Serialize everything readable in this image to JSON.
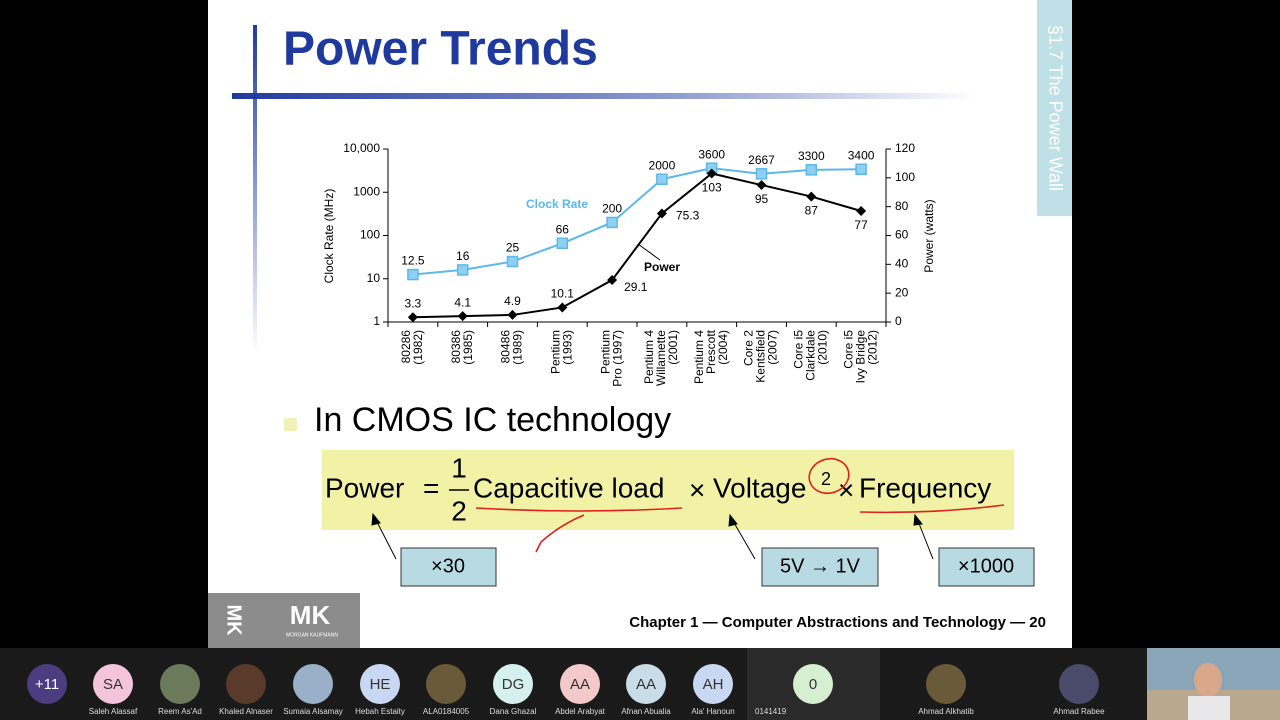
{
  "slide": {
    "title": "Power Trends",
    "section_tab": "§1.7 The Power Wall",
    "bullet": "In CMOS IC technology",
    "formula": {
      "lhs": "Power",
      "equals": "=",
      "numerator": "1",
      "denominator": "2",
      "terms": [
        "Capacitive load",
        "Voltage",
        "Frequency"
      ],
      "times": "×",
      "exponent": "2"
    },
    "callouts": [
      "×30",
      "5V → 1V",
      "×1000"
    ],
    "footer": "Chapter 1 — Computer Abstractions and Technology — 20",
    "logo": "MK",
    "logo_sub": "MORGAN KAUFMANN"
  },
  "chart_data": {
    "type": "line",
    "categories": [
      "80286\n(1982)",
      "80386\n(1985)",
      "80486\n(1989)",
      "Pentium\n(1993)",
      "Pentium\nPro (1997)",
      "Pentium 4\nWillamette\n(2001)",
      "Pentium 4\nPrescott\n(2004)",
      "Core 2\nKentsfield\n(2007)",
      "Core i5\nClarkdale\n(2010)",
      "Core i5\nIvy Bridge\n(2012)"
    ],
    "series": [
      {
        "name": "Clock Rate",
        "color": "#5bb8e8",
        "marker": "square",
        "values": [
          12.5,
          16,
          25,
          66,
          200,
          2000,
          3600,
          2667,
          3300,
          3400
        ]
      },
      {
        "name": "Power",
        "color": "#000000",
        "marker": "diamond",
        "axis": "y2",
        "values": [
          3.3,
          4.1,
          4.9,
          10.1,
          29.1,
          75.3,
          103,
          95,
          87,
          77
        ]
      }
    ],
    "ylabel": "Clock Rate (MHz)",
    "y2label": "Power (watts)",
    "log_scale": true,
    "ylim": [
      1,
      10000
    ],
    "yticks": [
      1,
      10,
      100,
      1000,
      {
        "value": 10000,
        "label": "10,000"
      }
    ],
    "y2lim": [
      0,
      120
    ],
    "y2ticks": [
      0,
      20,
      40,
      60,
      80,
      100,
      120
    ]
  },
  "participants": [
    {
      "initials": "+11",
      "color": "#4b3d80"
    },
    {
      "initials": "SA",
      "name": "Saleh Alassaf",
      "color": "#f3c4dc"
    },
    {
      "name": "Reem As'Ad"
    },
    {
      "name": "Khaled Alnaser"
    },
    {
      "name": "Sumaia Alsamay"
    },
    {
      "initials": "HE",
      "name": "Hebah Estaity",
      "color": "#c9d8f2"
    },
    {
      "name": "ALA0184005"
    },
    {
      "initials": "DG",
      "name": "Dana Ghazal",
      "color": "#d6f0f0"
    },
    {
      "initials": "AA",
      "name": "Abdel Arabyat",
      "color": "#f3c9c9"
    },
    {
      "initials": "AA",
      "name": "Afnan Abualia",
      "color": "#c9dde8"
    },
    {
      "initials": "AH",
      "name": "Ala' Hanoun",
      "color": "#c9d8f2"
    },
    {
      "initials": "0",
      "name": "0141419",
      "color": "#d6efd0"
    },
    {
      "name": "Ahmad Alkhatib"
    },
    {
      "name": "Ahmad Rabee"
    }
  ]
}
